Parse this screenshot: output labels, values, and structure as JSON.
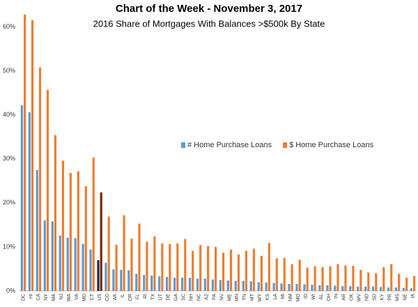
{
  "chart_data": {
    "type": "bar",
    "title": "Chart of the Week - November 3, 2017",
    "subtitle": "2016 Share of Mortgages With Balances >$500k By State",
    "categories": [
      "DC",
      "HI",
      "CA",
      "NY",
      "MA",
      "NJ",
      "WA",
      "VA",
      "MD",
      "CT",
      "US",
      "CO",
      "AK",
      "IL",
      "OR",
      "FL",
      "RI",
      "TX",
      "UT",
      "DE",
      "GA",
      "SC",
      "NH",
      "NC",
      "AZ",
      "PA",
      "NV",
      "ME",
      "MN",
      "TN",
      "MT",
      "WY",
      "KS",
      "LA",
      "MI",
      "NM",
      "MO",
      "ID",
      "WI",
      "AL",
      "OH",
      "IN",
      "AR",
      "OK",
      "WV",
      "ND",
      "SD",
      "KY",
      "PR",
      "MS",
      "NE",
      "IA"
    ],
    "series": [
      {
        "name": "# Home Purchase Loans",
        "color": "#5b9bd5",
        "highlight_color": "#1f2a44",
        "values": [
          42.2,
          40.6,
          27.5,
          16.0,
          15.8,
          12.6,
          12.1,
          12.0,
          10.7,
          9.4,
          7.0,
          6.4,
          4.9,
          4.8,
          4.7,
          3.9,
          3.6,
          3.5,
          3.3,
          3.2,
          3.0,
          3.0,
          3.0,
          2.8,
          2.8,
          2.6,
          2.5,
          2.4,
          2.3,
          2.3,
          2.2,
          2.0,
          1.9,
          1.8,
          1.7,
          1.6,
          1.6,
          1.5,
          1.4,
          1.3,
          1.3,
          1.2,
          1.1,
          1.1,
          1.0,
          1.0,
          1.0,
          0.9,
          0.8,
          0.8,
          0.7,
          0.6
        ]
      },
      {
        "name": "$ Home Purchase Loans",
        "color": "#ed7d31",
        "highlight_color": "#7b2500",
        "values": [
          62.8,
          61.5,
          50.8,
          45.7,
          35.4,
          29.6,
          26.8,
          27.2,
          23.8,
          30.3,
          22.4,
          16.9,
          10.5,
          17.2,
          11.9,
          15.3,
          11.2,
          12.4,
          10.8,
          10.7,
          10.8,
          11.8,
          9.1,
          10.4,
          10.2,
          10.0,
          8.7,
          9.4,
          8.3,
          9.1,
          9.6,
          8.0,
          10.9,
          7.4,
          7.5,
          6.1,
          7.1,
          5.3,
          5.6,
          5.4,
          5.6,
          6.1,
          5.8,
          5.7,
          4.8,
          4.2,
          4.0,
          5.4,
          6.1,
          3.9,
          3.0,
          3.4
        ]
      }
    ],
    "highlight_category": "US",
    "ylim": [
      0,
      65
    ],
    "yticks": [
      {
        "value": 0,
        "label": "0%"
      },
      {
        "value": 10,
        "label": "10%"
      },
      {
        "value": 20,
        "label": "20%"
      },
      {
        "value": 30,
        "label": "30%"
      },
      {
        "value": 40,
        "label": "40%"
      },
      {
        "value": 50,
        "label": "50%"
      },
      {
        "value": 60,
        "label": "60%"
      }
    ],
    "grid": false,
    "legend": "center"
  }
}
